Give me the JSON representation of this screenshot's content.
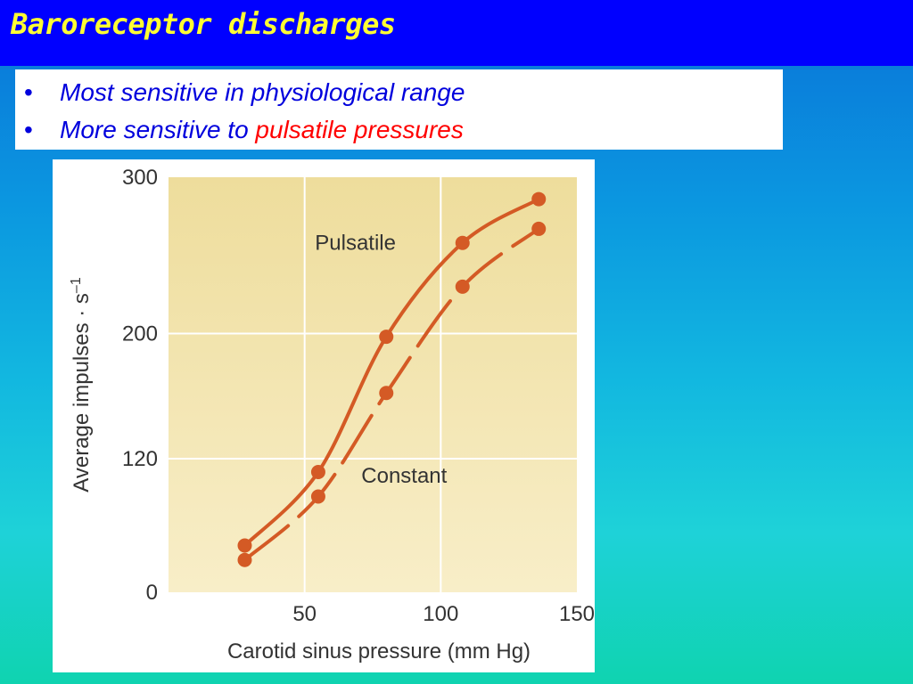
{
  "slide": {
    "title": "Baroreceptor discharges",
    "bullets": [
      {
        "marker": "•",
        "text": "Most sensitive in physiological range",
        "highlight": ""
      },
      {
        "marker": "•",
        "text": "More sensitive to ",
        "highlight": "pulsatile pressures"
      }
    ],
    "colors": {
      "title_bar": "#0000ff",
      "title_text": "#ffff33",
      "bullet_text": "#0000dd",
      "highlight": "#ff0000"
    }
  },
  "chart_data": {
    "type": "line",
    "xlabel": "Carotid sinus pressure (mm Hg)",
    "ylabel_main": "Average impulses · s",
    "ylabel_sup": "–1",
    "xlim": [
      0,
      150
    ],
    "xticks": [
      50,
      100,
      150
    ],
    "x_tick_labels": [
      "50",
      "100",
      "150"
    ],
    "yticks": [
      0,
      120,
      200,
      300
    ],
    "y_tick_labels": [
      "0",
      "120",
      "200",
      "300"
    ],
    "y_axis_note": "0–120 and 120–300 segments drawn at different scales",
    "grid": true,
    "colors": {
      "plot_bg": "#f2e3a8",
      "line": "#d45a25",
      "grid": "#ffffff"
    },
    "series": [
      {
        "name": "Pulsatile",
        "style": "solid",
        "x": [
          28,
          55,
          80,
          108,
          136
        ],
        "y": [
          42,
          108,
          198,
          258,
          286
        ]
      },
      {
        "name": "Constant",
        "style": "dashed",
        "x": [
          28,
          55,
          80,
          108,
          136
        ],
        "y": [
          29,
          86,
          162,
          230,
          267
        ]
      }
    ]
  }
}
